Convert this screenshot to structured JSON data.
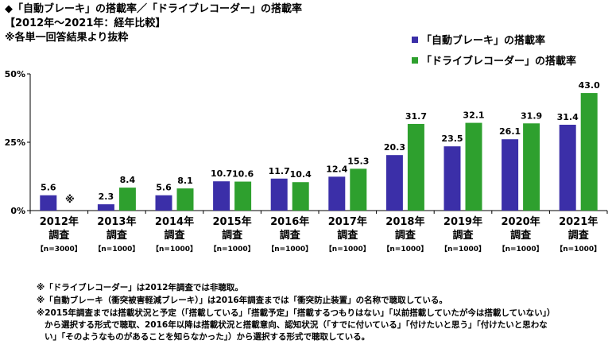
{
  "header": {
    "line1": "◆「自動ブレーキ」の搭載率／「ドライブレコーダー」の搭載率",
    "line2": "【2012年～2021年：経年比較】",
    "line3": "※各単一回答結果より抜粋"
  },
  "colors": {
    "series1": "#3b2fa8",
    "series2": "#2ea02e"
  },
  "chart_data": {
    "type": "bar",
    "categories": [
      {
        "year": "2012年",
        "label": "調査",
        "n": "【n=3000】"
      },
      {
        "year": "2013年",
        "label": "調査",
        "n": "【n=1000】"
      },
      {
        "year": "2014年",
        "label": "調査",
        "n": "【n=1000】"
      },
      {
        "year": "2015年",
        "label": "調査",
        "n": "【n=1000】"
      },
      {
        "year": "2016年",
        "label": "調査",
        "n": "【n=1000】"
      },
      {
        "year": "2017年",
        "label": "調査",
        "n": "【n=1000】"
      },
      {
        "year": "2018年",
        "label": "調査",
        "n": "【n=1000】"
      },
      {
        "year": "2019年",
        "label": "調査",
        "n": "【n=1000】"
      },
      {
        "year": "2020年",
        "label": "調査",
        "n": "【n=1000】"
      },
      {
        "year": "2021年",
        "label": "調査",
        "n": "【n=1000】"
      }
    ],
    "series": [
      {
        "name": "「自動ブレーキ」の搭載率",
        "values": [
          5.6,
          2.3,
          5.6,
          10.7,
          11.7,
          12.4,
          20.3,
          23.5,
          26.1,
          31.4
        ]
      },
      {
        "name": "「ドライブレコーダー」の搭載率",
        "values": [
          null,
          8.4,
          8.1,
          10.6,
          10.4,
          15.3,
          31.7,
          32.1,
          31.9,
          43.0
        ]
      }
    ],
    "missing_marker": "※",
    "yticks": [
      "0%",
      "25%",
      "50%"
    ],
    "ylim": [
      0,
      50
    ],
    "grid": false,
    "legend_position": "top-right"
  },
  "footnotes": [
    "※「ドライブレコーダー」は2012年調査では非聴取。",
    "※「自動ブレーキ（衝突被害軽減ブレーキ）」は2016年調査までは「衝突防止装置」の名称で聴取している。",
    "※2015年調査までは搭載状況と予定（「搭載している」「搭載予定」「搭載するつもりはない」「以前搭載していたが今は搭載していない」）",
    "から選択する形式で聴取、2016年以降は搭載状況と搭載意向、認知状況（「すでに付いている」「付けたいと思う」「付けたいと思わな",
    "い」「そのようなものがあることを知らなかった」）から選択する形式で聴取している。"
  ]
}
